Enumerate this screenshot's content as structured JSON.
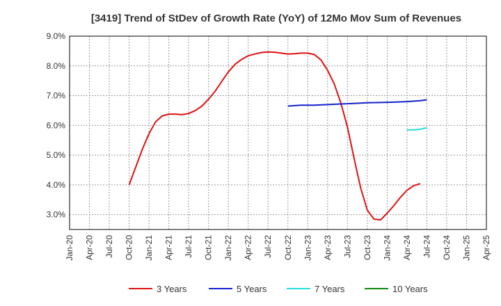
{
  "chart_data": {
    "type": "line",
    "title": "[3419]  Trend of StDev of Growth Rate (YoY) of 12Mo Mov Sum of Revenues",
    "xlabel": "",
    "ylabel": "",
    "x_ticks": [
      "Jan-20",
      "Apr-20",
      "Jul-20",
      "Oct-20",
      "Jan-21",
      "Apr-21",
      "Jul-21",
      "Oct-21",
      "Jan-22",
      "Apr-22",
      "Jul-22",
      "Oct-22",
      "Jan-23",
      "Apr-23",
      "Jul-23",
      "Oct-23",
      "Jan-24",
      "Apr-24",
      "Jul-24",
      "Oct-24",
      "Jan-25",
      "Apr-25"
    ],
    "y_ticks": [
      "3.0%",
      "4.0%",
      "5.0%",
      "6.0%",
      "7.0%",
      "8.0%",
      "9.0%"
    ],
    "y_tick_values": [
      3.0,
      4.0,
      5.0,
      6.0,
      7.0,
      8.0,
      9.0
    ],
    "ylim": [
      2.5,
      9.0
    ],
    "x_range_months": [
      0,
      63
    ],
    "grid": true,
    "legend_position": "bottom",
    "series": [
      {
        "name": "3 Years",
        "color": "#dd1111",
        "points": [
          [
            9,
            4.0
          ],
          [
            10,
            4.6
          ],
          [
            11,
            5.2
          ],
          [
            12,
            5.72
          ],
          [
            13,
            6.12
          ],
          [
            14,
            6.32
          ],
          [
            15,
            6.38
          ],
          [
            16,
            6.38
          ],
          [
            17,
            6.36
          ],
          [
            18,
            6.4
          ],
          [
            19,
            6.5
          ],
          [
            20,
            6.65
          ],
          [
            21,
            6.88
          ],
          [
            22,
            7.15
          ],
          [
            23,
            7.48
          ],
          [
            24,
            7.8
          ],
          [
            25,
            8.05
          ],
          [
            26,
            8.22
          ],
          [
            27,
            8.34
          ],
          [
            28,
            8.4
          ],
          [
            29,
            8.45
          ],
          [
            30,
            8.47
          ],
          [
            31,
            8.46
          ],
          [
            32,
            8.43
          ],
          [
            33,
            8.4
          ],
          [
            34,
            8.41
          ],
          [
            35,
            8.43
          ],
          [
            36,
            8.43
          ],
          [
            37,
            8.38
          ],
          [
            38,
            8.2
          ],
          [
            39,
            7.85
          ],
          [
            40,
            7.4
          ],
          [
            41,
            6.75
          ],
          [
            42,
            5.95
          ],
          [
            43,
            4.9
          ],
          [
            44,
            3.9
          ],
          [
            45,
            3.15
          ],
          [
            46,
            2.85
          ],
          [
            47,
            2.82
          ],
          [
            48,
            3.05
          ],
          [
            49,
            3.3
          ],
          [
            50,
            3.58
          ],
          [
            51,
            3.82
          ],
          [
            52,
            3.97
          ],
          [
            53,
            4.04
          ]
        ]
      },
      {
        "name": "5 Years",
        "color": "#1122cc",
        "points": [
          [
            33,
            6.65
          ],
          [
            35,
            6.68
          ],
          [
            37,
            6.68
          ],
          [
            39,
            6.7
          ],
          [
            41,
            6.72
          ],
          [
            43,
            6.74
          ],
          [
            45,
            6.76
          ],
          [
            47,
            6.77
          ],
          [
            49,
            6.78
          ],
          [
            51,
            6.8
          ],
          [
            53,
            6.83
          ],
          [
            54,
            6.86
          ]
        ]
      },
      {
        "name": "7 Years",
        "color": "#22dddd",
        "points": [
          [
            51,
            5.85
          ],
          [
            52,
            5.85
          ],
          [
            53,
            5.87
          ],
          [
            54,
            5.92
          ]
        ]
      },
      {
        "name": "10 Years",
        "color": "#118811",
        "points": []
      }
    ]
  }
}
